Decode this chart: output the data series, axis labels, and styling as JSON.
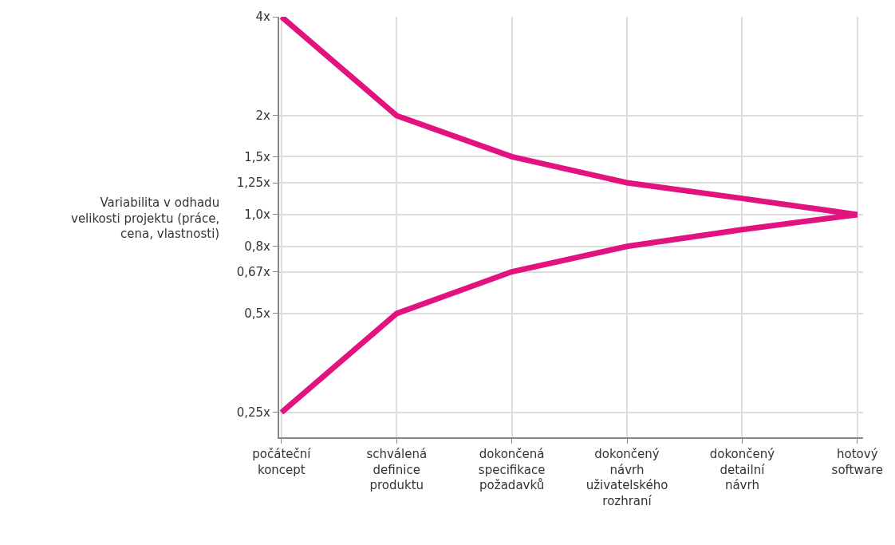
{
  "chart_data": {
    "type": "line",
    "ylabel": "Variabilita v odhadu velikosti projektu (práce, cena, vlastnosti)",
    "categories": [
      "počáteční koncept",
      "schválená definice produktu",
      "dokončená specifikace požadavků",
      "dokončený návrh uživatelského rozhraní",
      "dokončený detailní návrh",
      "hotový software"
    ],
    "series": [
      {
        "color": "#e2137f",
        "values": [
          4,
          2,
          1.5,
          1.25,
          1.12,
          1.0
        ]
      },
      {
        "color": "#e2137f",
        "values": [
          0.25,
          0.5,
          0.67,
          0.8,
          0.9,
          1.0
        ]
      }
    ],
    "log": "y",
    "ylim": [
      0.21,
      4
    ],
    "yticks": [
      {
        "value": 0.25,
        "label": "0,25x"
      },
      {
        "value": 0.5,
        "label": "0,5x"
      },
      {
        "value": 0.67,
        "label": "0,67x"
      },
      {
        "value": 0.8,
        "label": "0,8x"
      },
      {
        "value": 1.0,
        "label": "1,0x"
      },
      {
        "value": 1.25,
        "label": "1,25x"
      },
      {
        "value": 1.5,
        "label": "1,5x"
      },
      {
        "value": 2,
        "label": "2x"
      },
      {
        "value": 4,
        "label": "4x"
      }
    ],
    "grid": true,
    "marker": "none",
    "line_style": "solid"
  }
}
